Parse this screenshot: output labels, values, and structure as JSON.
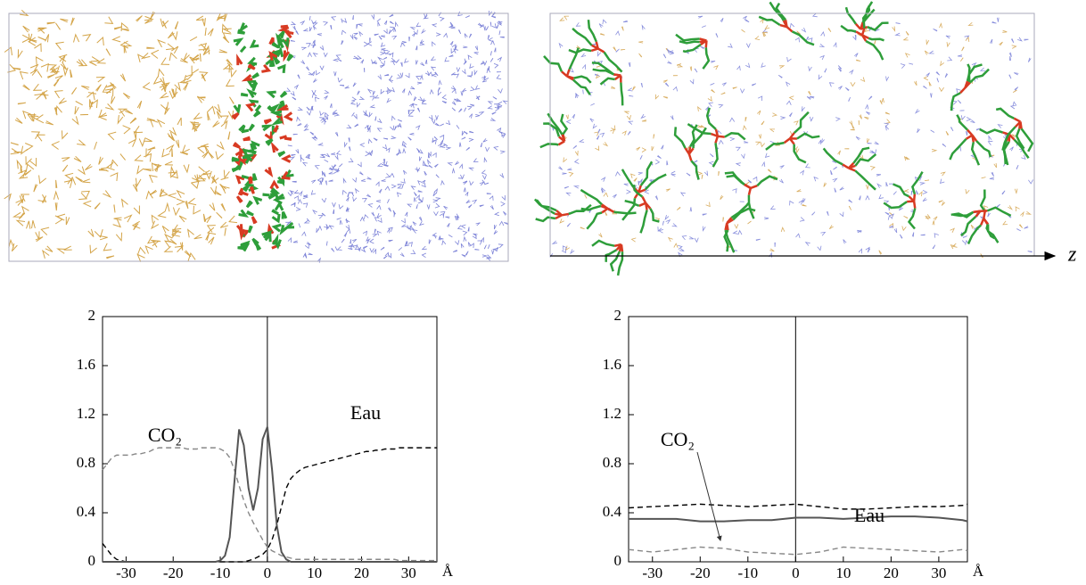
{
  "snapshot": {
    "axis_label": "z"
  },
  "chart_data": [
    {
      "type": "line",
      "x_label": "Å",
      "annotations": [
        "CO₂",
        "Eau"
      ],
      "xlim": [
        -35,
        36
      ],
      "ylim": [
        0,
        2
      ],
      "xticks": [
        -30,
        -20,
        -10,
        0,
        10,
        20,
        30
      ],
      "yticks": [
        0,
        0.4,
        0.8,
        1.2,
        1.6,
        2
      ],
      "x": [
        -35,
        -34,
        -33,
        -32,
        -31,
        -30,
        -29,
        -28,
        -27,
        -26,
        -25,
        -24,
        -23,
        -22,
        -21,
        -20,
        -19,
        -18,
        -17,
        -16,
        -15,
        -14,
        -13,
        -12,
        -11,
        -10,
        -9,
        -8,
        -7,
        -6,
        -5,
        -4,
        -3,
        -2,
        -1,
        0,
        1,
        2,
        3,
        4,
        5,
        6,
        7,
        8,
        9,
        10,
        11,
        12,
        13,
        14,
        15,
        16,
        17,
        18,
        19,
        20,
        21,
        22,
        23,
        24,
        25,
        26,
        27,
        28,
        29,
        30,
        31,
        32,
        33,
        34,
        35,
        36
      ],
      "series": [
        {
          "name": "CO₂",
          "color": "#888888",
          "dash": true,
          "values": [
            0.75,
            0.8,
            0.85,
            0.87,
            0.87,
            0.87,
            0.87,
            0.88,
            0.88,
            0.89,
            0.9,
            0.92,
            0.93,
            0.93,
            0.93,
            0.93,
            0.93,
            0.93,
            0.92,
            0.92,
            0.92,
            0.93,
            0.93,
            0.93,
            0.93,
            0.92,
            0.9,
            0.85,
            0.75,
            0.62,
            0.5,
            0.4,
            0.32,
            0.25,
            0.18,
            0.12,
            0.09,
            0.07,
            0.05,
            0.04,
            0.03,
            0.02,
            0.02,
            0.02,
            0.02,
            0.02,
            0.02,
            0.02,
            0.02,
            0.02,
            0.02,
            0.02,
            0.02,
            0.02,
            0.02,
            0.02,
            0.02,
            0.02,
            0.02,
            0.02,
            0.02,
            0.02,
            0.02,
            0.01,
            0.01,
            0.01,
            0.01,
            0.01,
            0.01,
            0.01,
            0.01,
            0.01
          ]
        },
        {
          "name": "Eau",
          "color": "#000000",
          "dash": true,
          "values": [
            0.15,
            0.1,
            0.05,
            0.02,
            0.01,
            0,
            0,
            0,
            0,
            0,
            0,
            0,
            0,
            0,
            0,
            0,
            0,
            0,
            0,
            0,
            0,
            0,
            0,
            0,
            0,
            0,
            0,
            0,
            0,
            0,
            0,
            0.01,
            0.02,
            0.04,
            0.06,
            0.1,
            0.18,
            0.3,
            0.45,
            0.6,
            0.68,
            0.72,
            0.75,
            0.77,
            0.78,
            0.79,
            0.8,
            0.81,
            0.82,
            0.83,
            0.84,
            0.85,
            0.86,
            0.87,
            0.88,
            0.89,
            0.9,
            0.9,
            0.91,
            0.91,
            0.92,
            0.92,
            0.92,
            0.93,
            0.93,
            0.93,
            0.93,
            0.93,
            0.93,
            0.93,
            0.93,
            0.93
          ]
        },
        {
          "color": "#555555",
          "dash": false,
          "values": [
            0,
            0,
            0,
            0,
            0,
            0,
            0,
            0,
            0,
            0,
            0,
            0,
            0,
            0,
            0,
            0,
            0,
            0,
            0,
            0,
            0,
            0,
            0,
            0,
            0,
            0.01,
            0.05,
            0.2,
            0.65,
            1.08,
            0.95,
            0.6,
            0.42,
            0.6,
            1.0,
            1.1,
            0.75,
            0.3,
            0.08,
            0.02,
            0,
            0,
            0,
            0,
            0,
            0,
            0,
            0,
            0,
            0,
            0,
            0,
            0,
            0,
            0,
            0,
            0,
            0,
            0,
            0,
            0,
            0,
            0,
            0,
            0,
            0,
            0,
            0,
            0,
            0,
            0,
            0
          ]
        }
      ]
    },
    {
      "type": "line",
      "x_label": "Å",
      "annotations": [
        "CO₂",
        "Eau"
      ],
      "xlim": [
        -35,
        36
      ],
      "ylim": [
        0,
        2
      ],
      "xticks": [
        -30,
        -20,
        -10,
        0,
        10,
        20,
        30
      ],
      "yticks": [
        0,
        0.4,
        0.8,
        1.2,
        1.6,
        2
      ],
      "x": [
        -35,
        -30,
        -25,
        -20,
        -15,
        -10,
        -5,
        0,
        5,
        10,
        15,
        20,
        25,
        30,
        35,
        36
      ],
      "series": [
        {
          "name": "CO₂",
          "color": "#888888",
          "dash": true,
          "values": [
            0.1,
            0.08,
            0.1,
            0.12,
            0.11,
            0.08,
            0.07,
            0.06,
            0.08,
            0.12,
            0.11,
            0.1,
            0.09,
            0.08,
            0.1,
            0.09
          ]
        },
        {
          "name": "Eau",
          "color": "#000000",
          "dash": true,
          "values": [
            0.44,
            0.45,
            0.46,
            0.47,
            0.46,
            0.45,
            0.46,
            0.47,
            0.45,
            0.43,
            0.43,
            0.44,
            0.45,
            0.45,
            0.46,
            0.47
          ]
        },
        {
          "color": "#555555",
          "dash": false,
          "values": [
            0.35,
            0.35,
            0.35,
            0.33,
            0.33,
            0.34,
            0.34,
            0.36,
            0.36,
            0.35,
            0.36,
            0.37,
            0.37,
            0.36,
            0.34,
            0.33
          ]
        }
      ]
    }
  ]
}
